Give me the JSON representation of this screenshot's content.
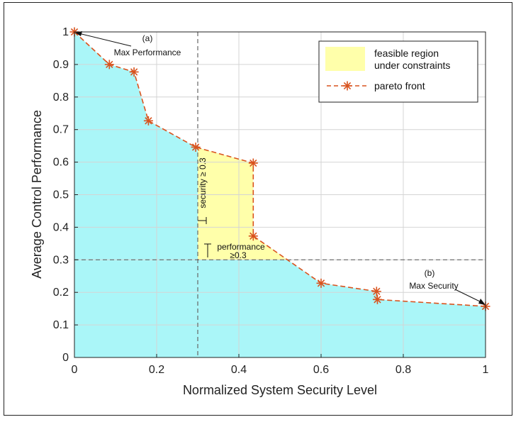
{
  "chart_data": {
    "type": "line",
    "title": "",
    "xlabel": "Normalized System Security Level",
    "ylabel": "Average Control Performance",
    "xlim": [
      0,
      1
    ],
    "ylim": [
      0,
      1
    ],
    "x_ticks": [
      0,
      0.2,
      0.4,
      0.6,
      0.8,
      1
    ],
    "y_ticks": [
      0,
      0.1,
      0.2,
      0.3,
      0.4,
      0.5,
      0.6,
      0.7,
      0.8,
      0.9,
      1
    ],
    "x_tick_labels": [
      "0",
      "0.2",
      "0.4",
      "0.6",
      "0.8",
      "1"
    ],
    "y_tick_labels": [
      "0",
      "0.1",
      "0.2",
      "0.3",
      "0.4",
      "0.5",
      "0.6",
      "0.7",
      "0.8",
      "0.9",
      "1"
    ],
    "grid": true,
    "legend_position": "top-right",
    "series": [
      {
        "name": "pareto front",
        "color": "#d9531e",
        "marker": "asterisk",
        "line_style": "dashed",
        "x": [
          0,
          0.085,
          0.145,
          0.18,
          0.295,
          0.435,
          0.435,
          0.6,
          0.735,
          0.737,
          1
        ],
        "y": [
          1,
          0.9,
          0.877,
          0.727,
          0.646,
          0.597,
          0.373,
          0.228,
          0.203,
          0.178,
          0.157
        ]
      }
    ],
    "regions": [
      {
        "name": "feasible region under constraints",
        "color": "#ffffaa",
        "description_bounds": {
          "x_min": 0.3,
          "y_min": 0.3
        }
      },
      {
        "name": "",
        "color": "#aaf6f8"
      }
    ],
    "constraint_lines": [
      {
        "axis": "x",
        "value": 0.3,
        "color": "#666666"
      },
      {
        "axis": "y",
        "value": 0.3,
        "color": "#666666"
      }
    ],
    "legend": {
      "region_label_line1": "feasible region",
      "region_label_line2": "under constraints",
      "series_label": "pareto front"
    },
    "annotations": {
      "a_label": "(a)",
      "a_text": "Max Performance",
      "b_label": "(b)",
      "b_text": "Max Security",
      "security_constraint": "security ≥ 0.3",
      "performance_line1": "performance",
      "performance_line2": "≥0.3"
    }
  }
}
